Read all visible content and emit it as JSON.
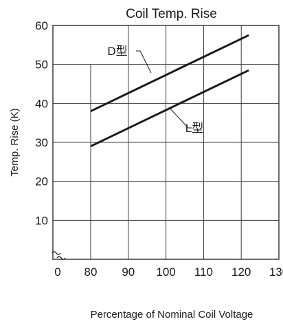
{
  "chart_data": {
    "type": "line",
    "title": "Coil Temp. Rise",
    "xlabel": "Percentage of Nominal Coil Voltage",
    "ylabel": "Temp. Rise (K)",
    "xlim": [
      0,
      130
    ],
    "ylim": [
      0,
      60
    ],
    "x_ticks": [
      "0",
      "80",
      "90",
      "100",
      "110",
      "120",
      "130"
    ],
    "y_ticks": [
      "10",
      "20",
      "30",
      "40",
      "50",
      "60"
    ],
    "x_axis_break": true,
    "grid": true,
    "series": [
      {
        "name": "D型",
        "x": [
          80,
          122
        ],
        "y": [
          38,
          57.5
        ]
      },
      {
        "name": "L型",
        "x": [
          80,
          122
        ],
        "y": [
          29,
          48.5
        ]
      }
    ],
    "colors": {
      "line": "#1a1a1a",
      "grid": "#3a3a3a",
      "text": "#1a1a1a"
    }
  }
}
